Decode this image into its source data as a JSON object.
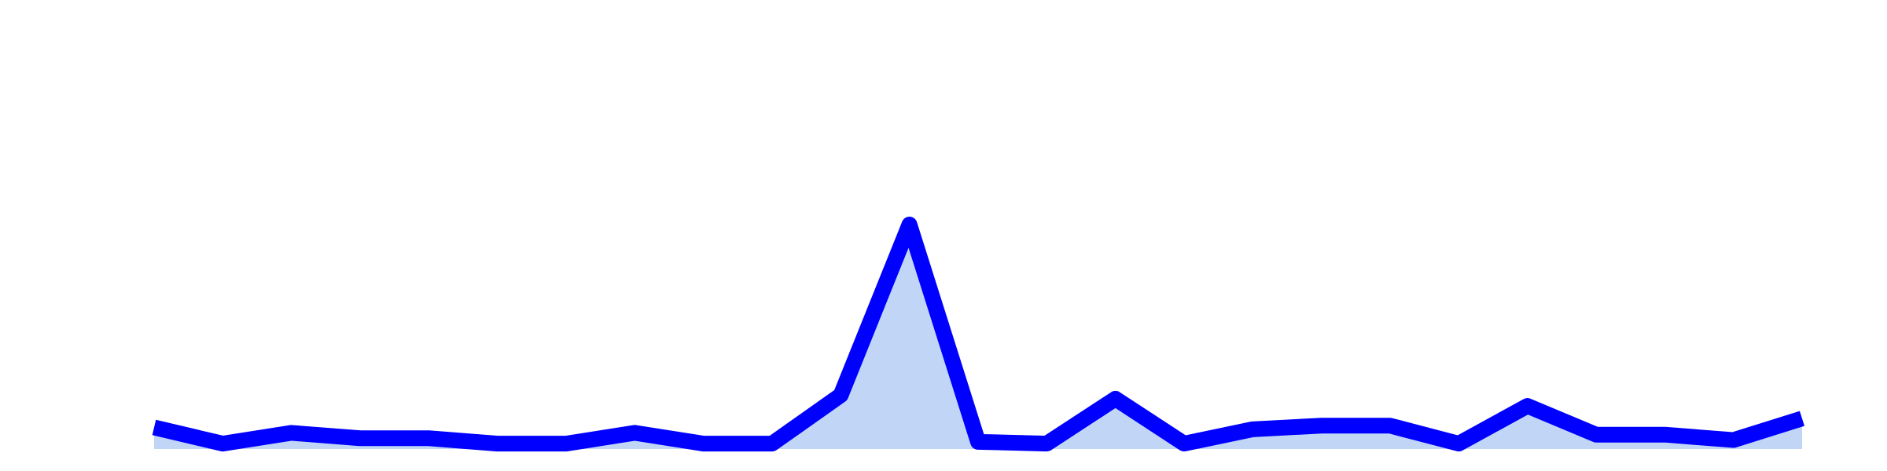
{
  "chart_data": {
    "type": "area",
    "title": "",
    "xlabel": "",
    "ylabel": "",
    "x": [
      0,
      1,
      2,
      3,
      4,
      5,
      6,
      7,
      8,
      9,
      10,
      11,
      12,
      13,
      14,
      15,
      16,
      17,
      18,
      19,
      20,
      21,
      22,
      23,
      24
    ],
    "series": [
      {
        "name": "",
        "values": [
          1.2,
          0.3,
          0.9,
          0.6,
          0.6,
          0.3,
          0.3,
          0.9,
          0.3,
          0.3,
          3.0,
          12.5,
          0.4,
          0.3,
          2.8,
          0.3,
          1.1,
          1.3,
          1.3,
          0.3,
          2.4,
          0.8,
          0.8,
          0.5,
          1.7
        ],
        "line_color": "#0000ff",
        "fill_color": "#c1d6f6"
      }
    ],
    "ylim": [
      0,
      25
    ],
    "grid": false,
    "legend": "none"
  }
}
